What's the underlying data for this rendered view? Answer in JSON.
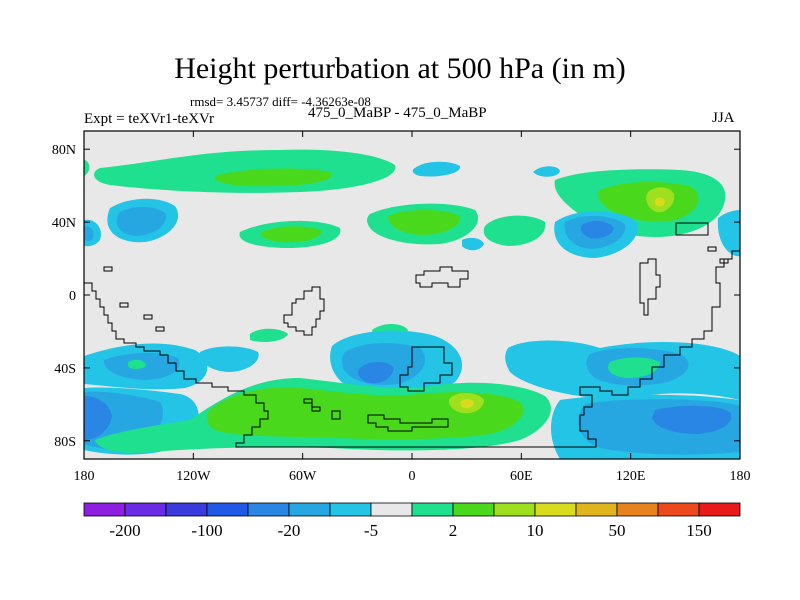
{
  "title": "Height perturbation at 500 hPa (in m)",
  "stats": "rmsd= 3.45737 diff= -4.36263e-08",
  "expt": "Expt = teXVr1-teXVr",
  "subtitle": "475_0_MaBP - 475_0_MaBP",
  "season": "JJA",
  "chart_data": {
    "type": "heatmap",
    "projection": "cylindrical equidistant",
    "variable": "Height perturbation at 500 hPa",
    "units": "m",
    "xlim": [
      -180,
      180
    ],
    "ylim": [
      -90,
      90
    ],
    "x_ticks": [
      "180",
      "120W",
      "60W",
      "0",
      "60E",
      "120E",
      "180"
    ],
    "y_ticks": [
      "80N",
      "40N",
      "0",
      "40S",
      "80S"
    ],
    "colorbar_levels": [
      -200,
      -150,
      -100,
      -50,
      -20,
      -10,
      -5,
      -2,
      2,
      5,
      10,
      20,
      50,
      100,
      150,
      200
    ],
    "colorbar_labels": [
      "-200",
      "-100",
      "-20",
      "-5",
      "2",
      "10",
      "50",
      "150"
    ],
    "colorbar_colors": [
      "#8d1fe0",
      "#6a2ae6",
      "#3b3bdc",
      "#1f59e6",
      "#2a86e4",
      "#27a7e2",
      "#23c4e6",
      "#e8e8e8",
      "#1fe08f",
      "#4ad81c",
      "#9fe01e",
      "#d8dc1c",
      "#e0b41c",
      "#e8821c",
      "#ec4a1c",
      "#e81a1a"
    ],
    "regions": [
      {
        "sign": "positive",
        "peak_m": 20,
        "lon": 140,
        "lat": 50
      },
      {
        "sign": "positive",
        "peak_m": 20,
        "lon": 30,
        "lat": -60
      },
      {
        "sign": "positive",
        "peak_m": 10,
        "lon": -60,
        "lat": -62
      },
      {
        "sign": "positive",
        "peak_m": 10,
        "lon": -55,
        "lat": 65
      },
      {
        "sign": "positive",
        "peak_m": 10,
        "lon": 0,
        "lat": 40
      },
      {
        "sign": "positive",
        "peak_m": 5,
        "lon": -85,
        "lat": 32
      },
      {
        "sign": "negative",
        "peak_m": -10,
        "lon": 100,
        "lat": 35
      },
      {
        "sign": "negative",
        "peak_m": -10,
        "lon": -20,
        "lat": -45
      },
      {
        "sign": "negative",
        "peak_m": -10,
        "lon": 145,
        "lat": -65
      },
      {
        "sign": "negative",
        "peak_m": -10,
        "lon": -170,
        "lat": -65
      },
      {
        "sign": "negative",
        "peak_m": -5,
        "lon": -120,
        "lat": 43
      },
      {
        "sign": "negative",
        "peak_m": -5,
        "lon": -140,
        "lat": -35
      },
      {
        "sign": "negative",
        "peak_m": -5,
        "lon": 130,
        "lat": -35
      },
      {
        "sign": "negative",
        "peak_m": -5,
        "lon": -15,
        "lat": 72
      }
    ]
  }
}
